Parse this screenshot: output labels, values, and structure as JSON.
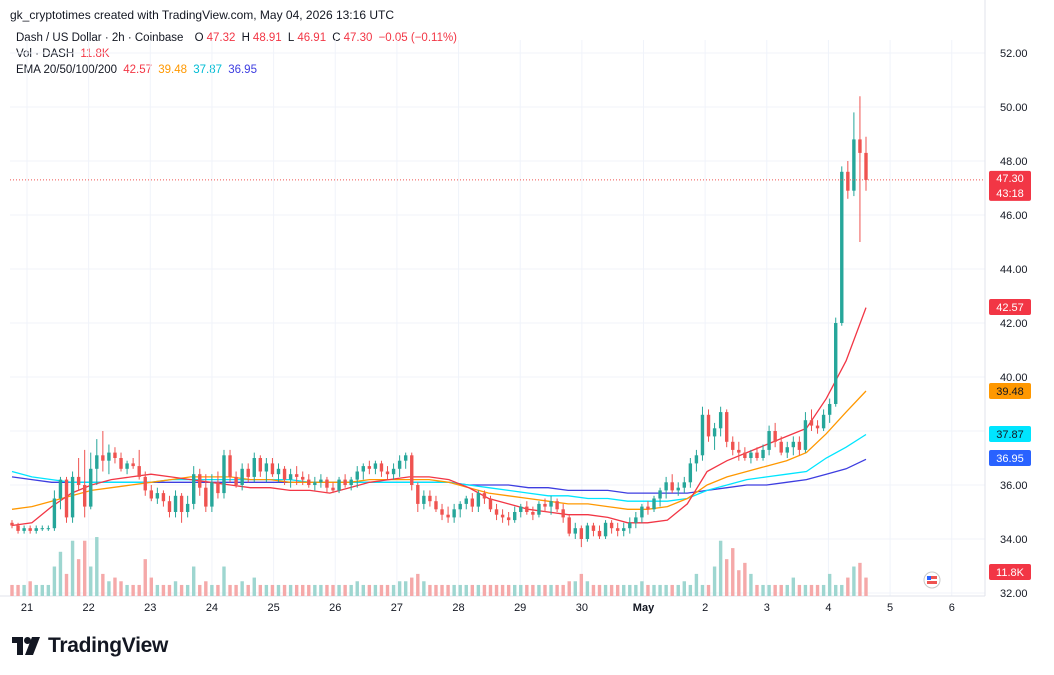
{
  "header": {
    "author": "gk_cryptotimes",
    "text": "created with TradingView.com, May 04, 2026 13:16 UTC"
  },
  "legend": {
    "symbol": "Dash / US Dollar · 2h · Coinbase",
    "open_label": "O",
    "open": "47.32",
    "high_label": "H",
    "high": "48.91",
    "low_label": "L",
    "low": "46.91",
    "close_label": "C",
    "close": "47.30",
    "change": "−0.05 (−0.11%)",
    "vol_label": "Vol · DASH",
    "vol_value": "11.8K",
    "ema_label": "EMA 20/50/100/200",
    "ema20": "42.57",
    "ema50": "39.48",
    "ema100": "37.87",
    "ema200": "36.95"
  },
  "colors": {
    "up": "#26a69a",
    "down": "#ef5350",
    "vol_up": "#9ed6d0",
    "vol_down": "#f5a9a9",
    "ema20": "#f23645",
    "ema50": "#ff9800",
    "ema100": "#00e5ff",
    "ema200": "#3d3de0",
    "grid": "#f0f3fa",
    "axis_text": "#131722"
  },
  "badges": {
    "price": "47.30",
    "countdown": "43:18",
    "ema20": "42.57",
    "ema50": "39.48",
    "ema100": "37.87",
    "ema200": "36.95",
    "volume": "11.8K"
  },
  "brand": {
    "name": "TradingView",
    "icon": "tradingview-logo-icon"
  },
  "chart_data": {
    "type": "candlestick",
    "y_axis": {
      "ticks": [
        "32.00",
        "34.00",
        "36.00",
        "38.00",
        "40.00",
        "42.00",
        "44.00",
        "46.00",
        "48.00",
        "50.00",
        "52.00"
      ],
      "range": [
        32,
        52.4
      ]
    },
    "x_axis": {
      "ticks": [
        "21",
        "22",
        "23",
        "24",
        "25",
        "26",
        "27",
        "28",
        "29",
        "30",
        "May",
        "2",
        "3",
        "4",
        "5",
        "6"
      ]
    },
    "grid": true,
    "candles": [
      [
        34.6,
        34.7,
        34.4,
        34.5
      ],
      [
        34.5,
        34.6,
        34.2,
        34.3
      ],
      [
        34.3,
        34.5,
        34.2,
        34.4
      ],
      [
        34.4,
        34.5,
        34.2,
        34.3
      ],
      [
        34.3,
        34.5,
        34.2,
        34.4
      ],
      [
        34.4,
        34.5,
        34.3,
        34.4
      ],
      [
        34.4,
        34.5,
        34.3,
        34.4
      ],
      [
        34.4,
        35.8,
        34.3,
        35.5
      ],
      [
        35.5,
        36.3,
        35.1,
        36.2
      ],
      [
        36.2,
        36.3,
        34.6,
        34.8
      ],
      [
        34.8,
        36.5,
        34.6,
        36.3
      ],
      [
        36.3,
        37.0,
        35.8,
        36.0
      ],
      [
        36.0,
        37.3,
        34.8,
        35.2
      ],
      [
        35.2,
        37.2,
        35.1,
        36.6
      ],
      [
        36.6,
        37.7,
        36.0,
        37.1
      ],
      [
        37.1,
        38.0,
        36.5,
        36.9
      ],
      [
        36.9,
        37.5,
        36.4,
        37.2
      ],
      [
        37.2,
        37.4,
        36.8,
        37.0
      ],
      [
        37.0,
        37.2,
        36.5,
        36.6
      ],
      [
        36.6,
        36.9,
        36.4,
        36.8
      ],
      [
        36.8,
        37.0,
        36.6,
        36.7
      ],
      [
        36.7,
        37.3,
        36.2,
        36.3
      ],
      [
        36.3,
        36.5,
        35.6,
        35.8
      ],
      [
        35.8,
        36.0,
        35.4,
        35.5
      ],
      [
        35.5,
        35.9,
        35.3,
        35.7
      ],
      [
        35.7,
        35.8,
        35.2,
        35.4
      ],
      [
        35.4,
        35.6,
        34.8,
        35.0
      ],
      [
        35.0,
        35.8,
        34.8,
        35.6
      ],
      [
        35.6,
        35.7,
        34.6,
        35.0
      ],
      [
        35.0,
        35.6,
        34.8,
        35.3
      ],
      [
        35.3,
        36.7,
        35.1,
        36.4
      ],
      [
        36.4,
        36.6,
        35.6,
        35.9
      ],
      [
        35.9,
        36.4,
        35.0,
        35.2
      ],
      [
        35.2,
        36.4,
        35.0,
        36.1
      ],
      [
        36.1,
        36.5,
        35.5,
        35.7
      ],
      [
        35.7,
        37.3,
        35.5,
        37.1
      ],
      [
        37.1,
        37.3,
        36.1,
        36.3
      ],
      [
        36.3,
        36.5,
        35.9,
        36.0
      ],
      [
        36.0,
        36.8,
        35.8,
        36.6
      ],
      [
        36.6,
        36.8,
        36.1,
        36.3
      ],
      [
        36.3,
        37.2,
        36.1,
        37.0
      ],
      [
        37.0,
        37.1,
        36.3,
        36.5
      ],
      [
        36.5,
        37.0,
        36.1,
        36.8
      ],
      [
        36.8,
        37.0,
        36.3,
        36.4
      ],
      [
        36.4,
        36.8,
        36.1,
        36.6
      ],
      [
        36.6,
        36.7,
        36.0,
        36.2
      ],
      [
        36.2,
        36.6,
        35.9,
        36.4
      ],
      [
        36.4,
        36.7,
        36.0,
        36.3
      ],
      [
        36.3,
        36.5,
        36.0,
        36.2
      ],
      [
        36.2,
        36.4,
        35.9,
        36.0
      ],
      [
        36.0,
        36.3,
        35.8,
        36.1
      ],
      [
        36.1,
        36.4,
        35.9,
        36.2
      ],
      [
        36.2,
        36.3,
        35.7,
        35.9
      ],
      [
        35.9,
        36.1,
        35.7,
        35.8
      ],
      [
        35.8,
        36.3,
        35.7,
        36.2
      ],
      [
        36.2,
        36.4,
        35.9,
        36.0
      ],
      [
        36.0,
        36.3,
        35.8,
        36.2
      ],
      [
        36.2,
        36.7,
        35.9,
        36.5
      ],
      [
        36.5,
        36.8,
        36.2,
        36.7
      ],
      [
        36.7,
        36.9,
        36.4,
        36.6
      ],
      [
        36.6,
        36.9,
        36.4,
        36.8
      ],
      [
        36.8,
        36.9,
        36.3,
        36.5
      ],
      [
        36.5,
        36.7,
        36.2,
        36.4
      ],
      [
        36.4,
        36.8,
        36.2,
        36.6
      ],
      [
        36.6,
        37.1,
        36.3,
        36.9
      ],
      [
        36.9,
        37.2,
        36.6,
        37.1
      ],
      [
        37.1,
        37.2,
        35.8,
        36.0
      ],
      [
        36.0,
        36.1,
        35.0,
        35.3
      ],
      [
        35.3,
        35.8,
        35.1,
        35.6
      ],
      [
        35.6,
        35.8,
        35.2,
        35.4
      ],
      [
        35.4,
        35.6,
        35.0,
        35.1
      ],
      [
        35.1,
        35.3,
        34.7,
        34.9
      ],
      [
        34.9,
        35.2,
        34.6,
        34.8
      ],
      [
        34.8,
        35.3,
        34.6,
        35.1
      ],
      [
        35.1,
        35.4,
        34.8,
        35.3
      ],
      [
        35.3,
        35.6,
        35.1,
        35.5
      ],
      [
        35.5,
        35.7,
        35.0,
        35.2
      ],
      [
        35.2,
        35.8,
        35.0,
        35.7
      ],
      [
        35.7,
        35.8,
        35.3,
        35.5
      ],
      [
        35.5,
        35.6,
        35.0,
        35.1
      ],
      [
        35.1,
        35.3,
        34.7,
        34.9
      ],
      [
        34.9,
        35.1,
        34.6,
        34.8
      ],
      [
        34.8,
        35.0,
        34.5,
        34.7
      ],
      [
        34.7,
        35.2,
        34.6,
        35.0
      ],
      [
        35.0,
        35.3,
        34.8,
        35.2
      ],
      [
        35.2,
        35.4,
        34.9,
        35.0
      ],
      [
        35.0,
        35.2,
        34.7,
        34.9
      ],
      [
        34.9,
        35.4,
        34.8,
        35.3
      ],
      [
        35.3,
        35.5,
        35.0,
        35.2
      ],
      [
        35.2,
        35.6,
        34.9,
        35.4
      ],
      [
        35.4,
        35.5,
        35.0,
        35.1
      ],
      [
        35.1,
        35.3,
        34.6,
        34.8
      ],
      [
        34.8,
        34.9,
        34.1,
        34.2
      ],
      [
        34.2,
        34.6,
        34.0,
        34.4
      ],
      [
        34.4,
        34.5,
        33.7,
        34.0
      ],
      [
        34.0,
        34.6,
        33.9,
        34.5
      ],
      [
        34.5,
        34.6,
        34.1,
        34.3
      ],
      [
        34.3,
        34.5,
        34.0,
        34.1
      ],
      [
        34.1,
        34.7,
        34.0,
        34.6
      ],
      [
        34.6,
        34.7,
        34.2,
        34.4
      ],
      [
        34.4,
        34.6,
        34.1,
        34.3
      ],
      [
        34.3,
        34.6,
        34.1,
        34.4
      ],
      [
        34.4,
        34.8,
        34.2,
        34.6
      ],
      [
        34.6,
        35.0,
        34.4,
        34.8
      ],
      [
        34.8,
        35.3,
        34.6,
        35.2
      ],
      [
        35.2,
        35.4,
        34.9,
        35.1
      ],
      [
        35.1,
        35.6,
        35.0,
        35.5
      ],
      [
        35.5,
        35.9,
        35.2,
        35.8
      ],
      [
        35.8,
        36.3,
        35.5,
        36.1
      ],
      [
        36.1,
        36.4,
        35.7,
        35.8
      ],
      [
        35.8,
        36.1,
        35.6,
        35.9
      ],
      [
        35.9,
        36.3,
        35.7,
        36.1
      ],
      [
        36.1,
        37.0,
        35.9,
        36.8
      ],
      [
        36.8,
        37.3,
        36.5,
        37.1
      ],
      [
        37.1,
        38.9,
        36.9,
        38.6
      ],
      [
        38.6,
        38.8,
        37.6,
        37.8
      ],
      [
        37.8,
        38.3,
        37.3,
        38.1
      ],
      [
        38.1,
        38.9,
        37.8,
        38.7
      ],
      [
        38.7,
        38.8,
        37.4,
        37.6
      ],
      [
        37.6,
        37.8,
        37.1,
        37.3
      ],
      [
        37.3,
        37.6,
        36.9,
        37.2
      ],
      [
        37.2,
        37.4,
        36.9,
        37.0
      ],
      [
        37.0,
        37.3,
        36.8,
        37.2
      ],
      [
        37.2,
        37.4,
        36.9,
        37.0
      ],
      [
        37.0,
        37.5,
        36.9,
        37.3
      ],
      [
        37.3,
        38.2,
        37.1,
        38.0
      ],
      [
        38.0,
        38.3,
        37.4,
        37.6
      ],
      [
        37.6,
        37.8,
        37.1,
        37.2
      ],
      [
        37.2,
        37.6,
        37.0,
        37.4
      ],
      [
        37.4,
        37.8,
        37.1,
        37.6
      ],
      [
        37.6,
        37.8,
        37.1,
        37.3
      ],
      [
        37.3,
        38.7,
        37.2,
        38.4
      ],
      [
        38.4,
        38.8,
        38.0,
        38.2
      ],
      [
        38.2,
        38.4,
        37.9,
        38.1
      ],
      [
        38.1,
        38.8,
        38.0,
        38.6
      ],
      [
        38.6,
        39.2,
        38.3,
        39.0
      ],
      [
        39.0,
        42.2,
        38.9,
        42.0
      ],
      [
        42.0,
        47.8,
        41.9,
        47.6
      ],
      [
        47.6,
        48.0,
        46.6,
        46.9
      ],
      [
        46.9,
        49.8,
        46.7,
        48.8
      ],
      [
        48.8,
        50.4,
        45.0,
        48.3
      ],
      [
        48.3,
        48.9,
        46.9,
        47.3
      ]
    ],
    "volume": [
      0.3,
      0.3,
      0.3,
      0.4,
      0.3,
      0.3,
      0.3,
      0.8,
      1.2,
      0.6,
      1.5,
      1.0,
      1.5,
      0.8,
      1.6,
      0.6,
      0.4,
      0.5,
      0.4,
      0.3,
      0.3,
      0.3,
      1.0,
      0.5,
      0.3,
      0.3,
      0.3,
      0.4,
      0.3,
      0.3,
      0.8,
      0.3,
      0.4,
      0.3,
      0.3,
      0.8,
      0.3,
      0.3,
      0.4,
      0.3,
      0.5,
      0.3,
      0.3,
      0.3,
      0.3,
      0.3,
      0.3,
      0.3,
      0.3,
      0.3,
      0.3,
      0.3,
      0.3,
      0.3,
      0.3,
      0.3,
      0.3,
      0.4,
      0.3,
      0.3,
      0.3,
      0.3,
      0.3,
      0.3,
      0.4,
      0.4,
      0.5,
      0.6,
      0.4,
      0.3,
      0.3,
      0.3,
      0.3,
      0.3,
      0.3,
      0.3,
      0.3,
      0.3,
      0.3,
      0.3,
      0.3,
      0.3,
      0.3,
      0.3,
      0.3,
      0.3,
      0.3,
      0.3,
      0.3,
      0.3,
      0.3,
      0.3,
      0.4,
      0.4,
      0.6,
      0.4,
      0.3,
      0.3,
      0.3,
      0.3,
      0.3,
      0.3,
      0.3,
      0.3,
      0.4,
      0.3,
      0.3,
      0.3,
      0.3,
      0.3,
      0.3,
      0.4,
      0.3,
      0.6,
      0.3,
      0.3,
      0.8,
      1.5,
      1.0,
      1.3,
      0.7,
      0.9,
      0.6,
      0.3,
      0.3,
      0.3,
      0.3,
      0.3,
      0.3,
      0.5,
      0.3,
      0.3,
      0.3,
      0.3,
      0.3,
      0.6,
      0.3,
      0.3,
      0.5,
      0.8,
      0.9,
      0.5,
      2.3,
      3.2,
      3.8,
      1.3,
      1.7,
      0.8
    ],
    "ema": {
      "ema20": [
        34.5,
        34.6,
        35.2,
        35.7,
        36.0,
        36.2,
        36.3,
        36.4,
        36.3,
        36.2,
        36.1,
        36.0,
        35.9,
        35.9,
        35.8,
        35.8,
        35.7,
        35.9,
        36.1,
        36.2,
        36.3,
        36.3,
        36.2,
        35.9,
        35.5,
        35.3,
        35.1,
        35.0,
        34.9,
        34.9,
        34.8,
        34.6,
        34.6,
        34.7,
        35.3,
        36.5,
        36.9,
        37.2,
        37.5,
        37.8,
        38.1,
        39.2,
        40.6,
        42.57
      ],
      "ema50": [
        35.1,
        35.2,
        35.4,
        35.6,
        35.8,
        35.9,
        36.0,
        36.1,
        36.2,
        36.3,
        36.3,
        36.3,
        36.2,
        36.2,
        36.1,
        36.1,
        36.1,
        36.1,
        36.2,
        36.2,
        36.2,
        36.2,
        36.1,
        35.9,
        35.7,
        35.6,
        35.5,
        35.4,
        35.3,
        35.3,
        35.2,
        35.1,
        35.1,
        35.2,
        35.5,
        36.0,
        36.3,
        36.5,
        36.7,
        36.9,
        37.2,
        37.9,
        38.7,
        39.48
      ],
      "ema100": [
        36.5,
        36.3,
        36.2,
        36.1,
        36.1,
        36.1,
        36.1,
        36.1,
        36.2,
        36.2,
        36.2,
        36.2,
        36.2,
        36.2,
        36.2,
        36.1,
        36.1,
        36.1,
        36.1,
        36.1,
        36.1,
        36.1,
        36.1,
        36.0,
        35.9,
        35.8,
        35.7,
        35.6,
        35.6,
        35.5,
        35.5,
        35.4,
        35.4,
        35.4,
        35.5,
        35.8,
        36.0,
        36.2,
        36.3,
        36.4,
        36.5,
        37.0,
        37.4,
        37.87
      ],
      "ema200": [
        36.3,
        36.2,
        36.1,
        36.1,
        36.1,
        36.1,
        36.1,
        36.1,
        36.1,
        36.1,
        36.1,
        36.1,
        36.1,
        36.1,
        36.1,
        36.1,
        36.1,
        36.1,
        36.1,
        36.1,
        36.1,
        36.1,
        36.1,
        36.0,
        36.0,
        36.0,
        35.9,
        35.9,
        35.8,
        35.8,
        35.8,
        35.7,
        35.7,
        35.7,
        35.7,
        35.8,
        35.9,
        36.0,
        36.0,
        36.1,
        36.2,
        36.4,
        36.6,
        36.95
      ]
    }
  }
}
